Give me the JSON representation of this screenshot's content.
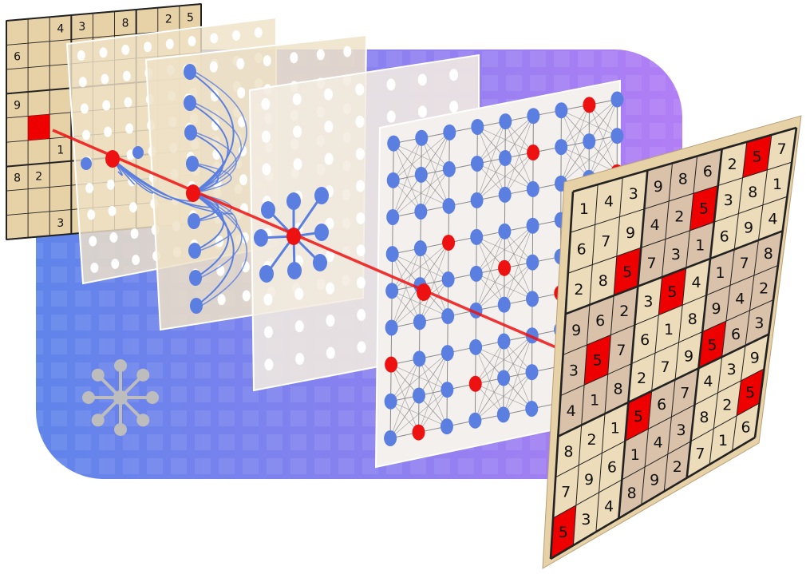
{
  "colors": {
    "board_tan": "#e7d1a6",
    "board_cell": "#ecdcb9",
    "board_shade": "#d9c2a9",
    "highlight_red": "#ee0000",
    "node_blue": "#5b7fe0",
    "node_red": "#ee1111",
    "edge_gray": "#8a8a8a",
    "background_from": "#5f84ea",
    "background_to": "#b27ef5",
    "icon_gray": "#bdbdbd"
  },
  "input_grid": {
    "rows": [
      [
        "",
        "",
        "4",
        "3",
        "",
        "8",
        "",
        "2",
        "5"
      ],
      [
        "6",
        "",
        "",
        "",
        "",
        "",
        "",
        "",
        ""
      ],
      [
        "",
        "",
        "",
        "",
        "",
        "",
        "",
        "",
        ""
      ],
      [
        "9",
        "",
        "",
        "",
        "",
        "",
        "",
        "",
        ""
      ],
      [
        "",
        "",
        "",
        "",
        "",
        "",
        "",
        "",
        ""
      ],
      [
        "",
        "",
        "1",
        "",
        "",
        "",
        "",
        "",
        ""
      ],
      [
        "8",
        "2",
        "",
        "",
        "",
        "",
        "",
        "",
        ""
      ],
      [
        "",
        "",
        "",
        "",
        "",
        "",
        "",
        "",
        ""
      ],
      [
        "",
        "",
        "3",
        "",
        "",
        "",
        "",
        "",
        ""
      ]
    ],
    "highlight": [
      [
        4,
        1
      ]
    ]
  },
  "output_grid": {
    "rows": [
      [
        "9",
        "8",
        "6",
        "2",
        "5",
        "7"
      ],
      [
        "1",
        "4",
        "3",
        "9",
        "8",
        "6",
        "2",
        "5",
        "7"
      ],
      [
        "1",
        "4",
        "3",
        "9",
        "4",
        "2",
        "5",
        "3",
        "8",
        "1"
      ],
      [
        "6",
        "7",
        "9",
        "4",
        "2",
        "5",
        "1",
        "9",
        "4"
      ],
      [
        "6",
        "7",
        "9",
        "7",
        "3",
        "1",
        "6",
        "9",
        "4"
      ],
      [
        "2",
        "8",
        "5",
        "7",
        "3",
        "5",
        "4",
        "1",
        "7",
        "8"
      ]
    ],
    "grid": [
      [
        "1",
        "4",
        "3",
        "9",
        "8",
        "6",
        "2",
        "5",
        "7"
      ],
      [
        "6",
        "7",
        "9",
        "4",
        "2",
        "5",
        "3",
        "8",
        "1"
      ],
      [
        "2",
        "8",
        "5",
        "7",
        "3",
        "1",
        "6",
        "9",
        "4"
      ],
      [
        "9",
        "6",
        "2",
        "3",
        "5",
        "4",
        "1",
        "7",
        "8"
      ],
      [
        "3",
        "5",
        "7",
        "6",
        "1",
        "8",
        "9",
        "4",
        "2"
      ],
      [
        "4",
        "1",
        "8",
        "2",
        "7",
        "9",
        "5",
        "6",
        "3"
      ],
      [
        "8",
        "2",
        "1",
        "5",
        "6",
        "7",
        "4",
        "3",
        "9"
      ],
      [
        "7",
        "9",
        "6",
        "1",
        "4",
        "3",
        "8",
        "2",
        "5"
      ],
      [
        "5",
        "3",
        "4",
        "8",
        "9",
        "2",
        "7",
        "1",
        "6"
      ]
    ],
    "highlight_value": "5"
  },
  "icon": {
    "name": "graph-star-icon"
  }
}
